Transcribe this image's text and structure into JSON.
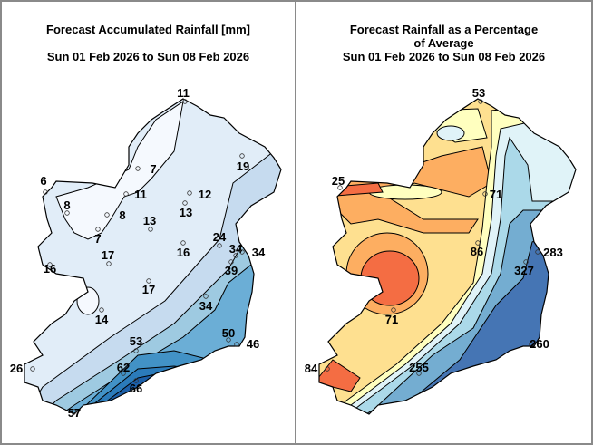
{
  "left_map": {
    "title_line1": "Forecast Accumulated Rainfall [mm]",
    "title_line2": "Sun 01 Feb 2026 to Sun 08 Feb 2026",
    "colors": [
      "#f5f9fe",
      "#e1edf8",
      "#c6dbef",
      "#9ecae1",
      "#6baed6",
      "#4292c6",
      "#2b7bba",
      "#1c5fa8"
    ],
    "stations": [
      "11",
      "7",
      "19",
      "6",
      "11",
      "12",
      "8",
      "8",
      "13",
      "13",
      "7",
      "24",
      "17",
      "16",
      "34",
      "34",
      "16",
      "39",
      "17",
      "34",
      "14",
      "50",
      "46",
      "53",
      "26",
      "62",
      "66",
      "57"
    ]
  },
  "right_map": {
    "title_line1": "Forecast Rainfall as a Percentage",
    "title_line2": "of Average",
    "title_line3": "Sun 01 Feb 2026 to Sun 08 Feb 2026",
    "colors": [
      "#f46d43",
      "#fdae61",
      "#fee090",
      "#ffffbf",
      "#e0f3f8",
      "#abd9e9",
      "#74add1",
      "#4575b4"
    ],
    "stations": [
      "53",
      "25",
      "71",
      "86",
      "283",
      "327",
      "71",
      "260",
      "84",
      "255"
    ]
  }
}
